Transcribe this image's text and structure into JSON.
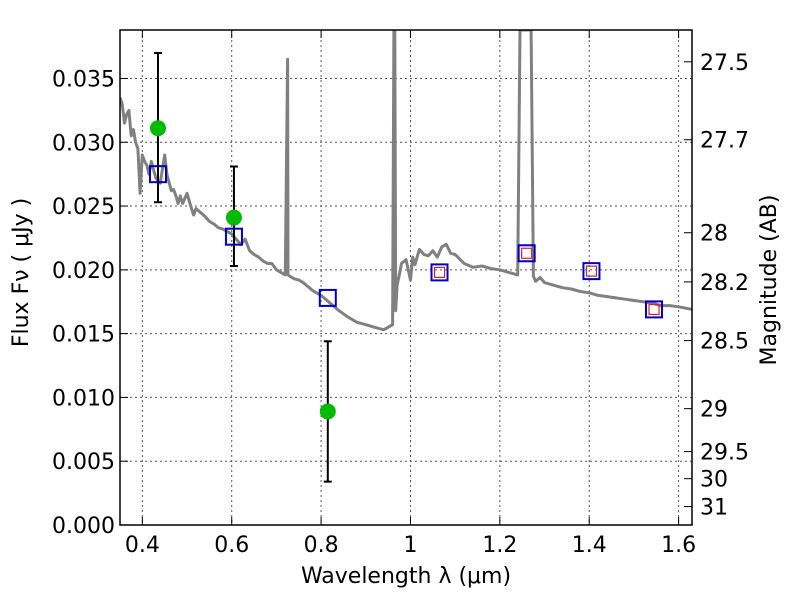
{
  "chart_data": {
    "type": "scatter",
    "xlabel": "Wavelength  λ (μm)",
    "ylabel": "Flux  Fν  ( μJy )",
    "y2label": "Magnitude (AB)",
    "xlim": [
      0.35,
      1.63
    ],
    "ylim": [
      0.0,
      0.0388
    ],
    "grid": true,
    "x_ticks": [
      0.4,
      0.6,
      0.8,
      1.0,
      1.2,
      1.4,
      1.6
    ],
    "x_tick_labels": [
      "0.4",
      "0.6",
      "0.8",
      "1",
      "1.2",
      "1.4",
      "1.6"
    ],
    "y_ticks": [
      0.0,
      0.005,
      0.01,
      0.015,
      0.02,
      0.025,
      0.03,
      0.035
    ],
    "y_tick_labels": [
      "0.000",
      "0.005",
      "0.010",
      "0.015",
      "0.020",
      "0.025",
      "0.030",
      "0.035"
    ],
    "y2_tick_labels": [
      "27.5",
      "27.7",
      "28",
      "28.2",
      "28.5",
      "29",
      "29.5",
      "30",
      "31"
    ],
    "y2_tick_mags": [
      27.5,
      27.7,
      28.0,
      28.2,
      28.5,
      29.0,
      29.5,
      30.0,
      31.0
    ],
    "series": [
      {
        "kind": "line",
        "color": "#808080",
        "x": [
          0.35,
          0.355,
          0.36,
          0.365,
          0.37,
          0.375,
          0.38,
          0.385,
          0.39,
          0.395,
          0.4,
          0.405,
          0.41,
          0.415,
          0.42,
          0.43,
          0.44,
          0.45,
          0.455,
          0.46,
          0.465,
          0.47,
          0.475,
          0.48,
          0.485,
          0.49,
          0.5,
          0.51,
          0.515,
          0.52,
          0.53,
          0.54,
          0.55,
          0.56,
          0.57,
          0.58,
          0.59,
          0.6,
          0.61,
          0.62,
          0.63,
          0.64,
          0.65,
          0.66,
          0.67,
          0.68,
          0.69,
          0.7,
          0.71,
          0.72,
          0.725,
          0.726,
          0.73,
          0.74,
          0.75,
          0.76,
          0.77,
          0.78,
          0.8,
          0.82,
          0.84,
          0.86,
          0.88,
          0.9,
          0.92,
          0.94,
          0.96,
          0.963,
          0.965,
          0.967,
          0.97,
          0.975,
          0.98,
          0.99,
          1.0,
          1.005,
          1.01,
          1.02,
          1.03,
          1.04,
          1.05,
          1.06,
          1.07,
          1.08,
          1.09,
          1.1,
          1.12,
          1.14,
          1.16,
          1.18,
          1.2,
          1.22,
          1.24,
          1.245,
          1.25,
          1.27,
          1.275,
          1.28,
          1.29,
          1.3,
          1.32,
          1.34,
          1.36,
          1.38,
          1.4,
          1.42,
          1.44,
          1.46,
          1.48,
          1.5,
          1.52,
          1.54,
          1.56,
          1.58,
          1.6,
          1.63
        ],
        "y": [
          0.0335,
          0.033,
          0.0315,
          0.0322,
          0.0325,
          0.0305,
          0.031,
          0.03,
          0.0295,
          0.026,
          0.029,
          0.0285,
          0.0282,
          0.0275,
          0.0285,
          0.0272,
          0.0268,
          0.029,
          0.0275,
          0.0268,
          0.0262,
          0.0263,
          0.0258,
          0.0252,
          0.0258,
          0.0252,
          0.026,
          0.0248,
          0.0243,
          0.0248,
          0.0245,
          0.0242,
          0.0238,
          0.0236,
          0.0233,
          0.0232,
          0.023,
          0.0228,
          0.0224,
          0.022,
          0.0224,
          0.0215,
          0.0212,
          0.021,
          0.0207,
          0.0205,
          0.0205,
          0.02,
          0.0198,
          0.0196,
          0.0365,
          0.0196,
          0.0195,
          0.0193,
          0.0192,
          0.019,
          0.0187,
          0.0184,
          0.018,
          0.0174,
          0.0168,
          0.0163,
          0.0159,
          0.0157,
          0.0155,
          0.0153,
          0.0157,
          0.0388,
          0.0388,
          0.0168,
          0.0188,
          0.0196,
          0.0205,
          0.0208,
          0.0192,
          0.021,
          0.0204,
          0.0216,
          0.0212,
          0.0211,
          0.0215,
          0.021,
          0.0218,
          0.022,
          0.0213,
          0.0212,
          0.0205,
          0.0202,
          0.0203,
          0.0201,
          0.02,
          0.0198,
          0.0196,
          0.0388,
          0.0388,
          0.0388,
          0.0195,
          0.0191,
          0.0194,
          0.019,
          0.0188,
          0.0186,
          0.0185,
          0.0183,
          0.0182,
          0.018,
          0.0179,
          0.0178,
          0.0177,
          0.0176,
          0.0175,
          0.0174,
          0.0172,
          0.0172,
          0.0171,
          0.0169
        ]
      },
      {
        "kind": "markers",
        "marker": "circle",
        "color": "#00bb00",
        "x": [
          0.435,
          0.605,
          0.815
        ],
        "y": [
          0.0311,
          0.0241,
          0.0089
        ],
        "yerr_low": [
          0.0253,
          0.0203,
          0.0034
        ],
        "yerr_high": [
          0.037,
          0.0281,
          0.0144
        ]
      },
      {
        "kind": "markers",
        "marker": "square",
        "color": "#0000cc",
        "x": [
          0.435,
          0.605,
          0.815,
          1.065,
          1.26,
          1.405,
          1.545
        ],
        "y": [
          0.0275,
          0.0226,
          0.0178,
          0.0198,
          0.0213,
          0.0199,
          0.0169
        ]
      },
      {
        "kind": "markers",
        "marker": "square",
        "color": "#dd2222",
        "x": [
          1.065,
          1.26,
          1.405,
          1.545
        ],
        "y": [
          0.0198,
          0.0213,
          0.0199,
          0.0169
        ]
      }
    ]
  }
}
